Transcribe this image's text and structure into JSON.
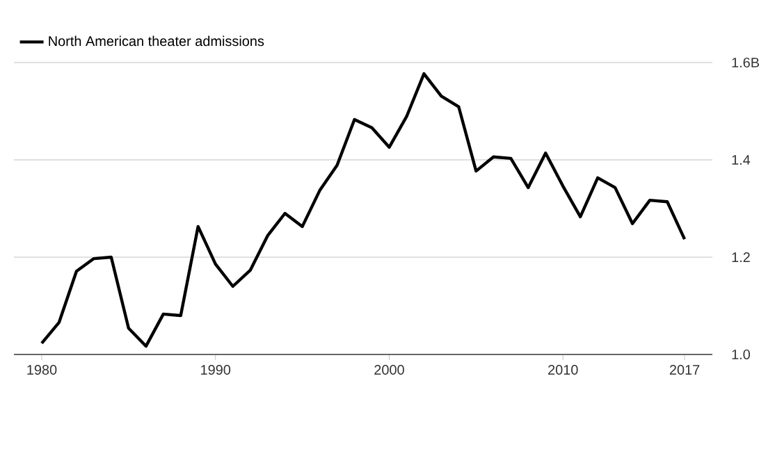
{
  "chart_data": {
    "type": "line",
    "x": [
      1980,
      1981,
      1982,
      1983,
      1984,
      1985,
      1986,
      1987,
      1988,
      1989,
      1990,
      1991,
      1992,
      1993,
      1994,
      1995,
      1996,
      1997,
      1998,
      1999,
      2000,
      2001,
      2002,
      2003,
      2004,
      2005,
      2006,
      2007,
      2008,
      2009,
      2010,
      2011,
      2012,
      2013,
      2014,
      2015,
      2016,
      2017
    ],
    "series": [
      {
        "name": "North American theater admissions",
        "color": "#000000",
        "values": [
          1.023,
          1.066,
          1.171,
          1.197,
          1.2,
          1.054,
          1.017,
          1.083,
          1.08,
          1.263,
          1.186,
          1.14,
          1.173,
          1.244,
          1.29,
          1.263,
          1.337,
          1.389,
          1.483,
          1.466,
          1.426,
          1.489,
          1.577,
          1.531,
          1.509,
          1.377,
          1.406,
          1.403,
          1.343,
          1.414,
          1.346,
          1.283,
          1.363,
          1.343,
          1.269,
          1.317,
          1.314,
          1.237
        ]
      }
    ],
    "xlim": [
      1978.4,
      2018.6
    ],
    "xticks": [
      1980,
      1990,
      2000,
      2010,
      2017
    ],
    "ylim": [
      1.0,
      1.6
    ],
    "yticks": [
      {
        "value": 1.0,
        "label": "1.0"
      },
      {
        "value": 1.2,
        "label": "1.2"
      },
      {
        "value": 1.4,
        "label": "1.4"
      },
      {
        "value": 1.6,
        "label": "1.6B"
      }
    ],
    "grid": "y",
    "legend": "top left",
    "line_style": "solid",
    "marker": "none"
  }
}
